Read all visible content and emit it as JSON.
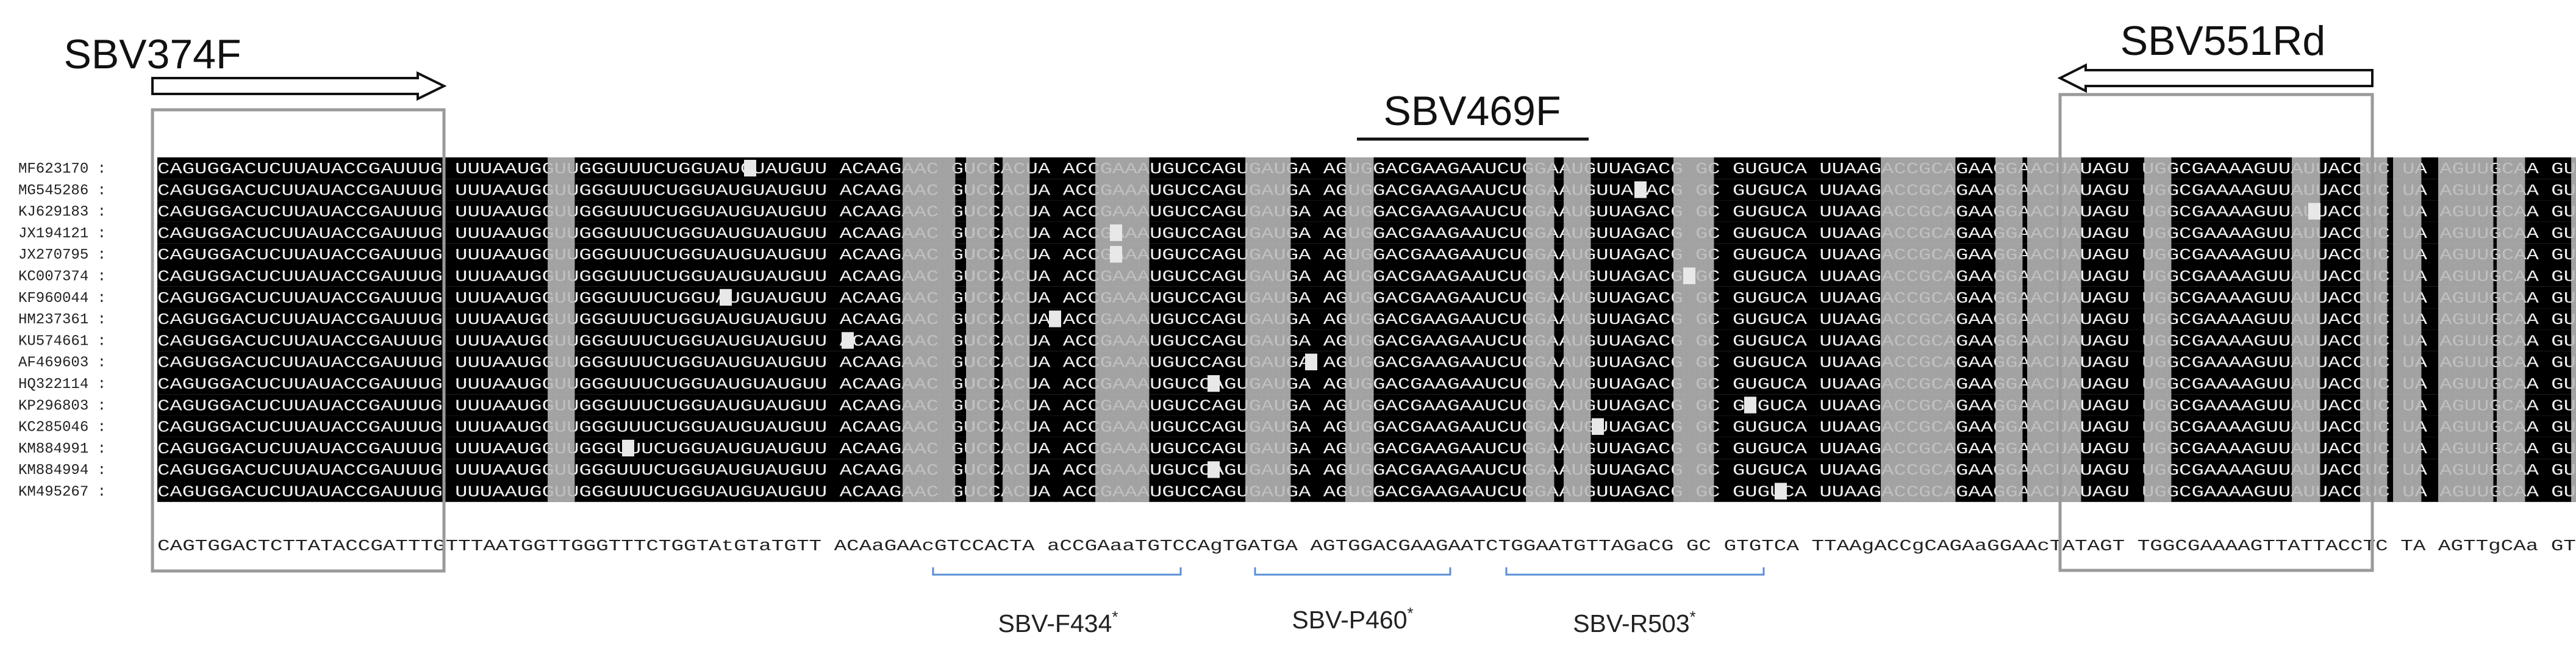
{
  "primers": [
    {
      "label": "SBV374F",
      "direction": "right"
    },
    {
      "label": "SBV469F",
      "direction": "none"
    },
    {
      "label": "SBV551Rd",
      "direction": "left"
    }
  ],
  "accessions": [
    "MF623170 :",
    "MG545286 :",
    "KJ629183 :",
    "JX194121 :",
    "JX270795 :",
    "KC007374 :",
    "KF960044 :",
    "HM237361 :",
    "KU574661 :",
    "AF469603 :",
    "HQ322114 :",
    "KP296803 :",
    "KC285046 :",
    "KM884991 :",
    "KM884994 :",
    "KM495267 :"
  ],
  "consensus_chunks": [
    "CAGTGGACTCTTATACCGATTTG",
    "TTTAATGGTTGGGTTTCTGGTAtGTaTGTT",
    "ACAaGAAc",
    "GTCCACTA",
    "aCCGAaaTGTCCAgTGATGA",
    "AGTGGACGAAGAATCTGGAATGTTAGaCG",
    "GC",
    "GTGTCA",
    "TTAAgACCgCAGAaGGAAcTATAGT",
    "TGGCGAAAAGTTATTACCTC",
    "TA",
    "AGTTgCAa",
    "GT"
  ],
  "probes": [
    {
      "label": "SBV-F434",
      "mark": "*"
    },
    {
      "label": "SBV-P460",
      "mark": "*"
    },
    {
      "label": "SBV-R503",
      "mark": "*"
    }
  ],
  "colors": {
    "identical_block": "#000000",
    "partial_block": "#b8b8b8",
    "residue_on_dark": "#f0f0f0",
    "primer_box": "#9a9a9a",
    "probe_bracket": "#5a8fd6",
    "text": "#111111"
  }
}
